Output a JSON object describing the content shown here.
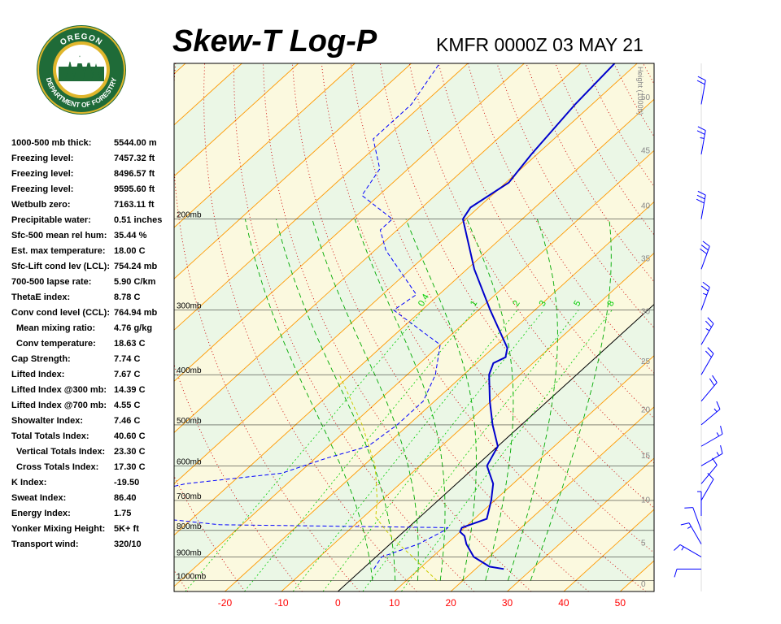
{
  "header": {
    "title": "Skew-T Log-P",
    "station_time": "KMFR 0000Z 03 MAY 21"
  },
  "logo": {
    "top_text": "OREGON",
    "bottom_text": "DEPARTMENT OF FORESTRY"
  },
  "indices": [
    {
      "label": "1000-500 mb thick:",
      "value": "5544.00 m",
      "indent": false
    },
    {
      "label": "Freezing level:",
      "value": "7457.32 ft",
      "indent": false
    },
    {
      "label": "Freezing level:",
      "value": "8496.57 ft",
      "indent": false
    },
    {
      "label": "Freezing level:",
      "value": "9595.60 ft",
      "indent": false
    },
    {
      "label": "Wetbulb zero:",
      "value": "7163.11 ft",
      "indent": false
    },
    {
      "label": "Precipitable water:",
      "value": "0.51 inches",
      "indent": false
    },
    {
      "label": "Sfc-500 mean rel hum:",
      "value": "35.44 %",
      "indent": false
    },
    {
      "label": "Est. max temperature:",
      "value": "18.00 C",
      "indent": false
    },
    {
      "label": "Sfc-Lift cond lev (LCL):",
      "value": "754.24 mb",
      "indent": false
    },
    {
      "label": "700-500 lapse rate:",
      "value": "5.90 C/km",
      "indent": false
    },
    {
      "label": "ThetaE index:",
      "value": "8.78 C",
      "indent": false
    },
    {
      "label": "Conv cond level (CCL):",
      "value": "764.94 mb",
      "indent": false
    },
    {
      "label": "Mean mixing ratio:",
      "value": "4.76 g/kg",
      "indent": true
    },
    {
      "label": "Conv temperature:",
      "value": "18.63 C",
      "indent": true
    },
    {
      "label": "Cap Strength:",
      "value": "7.74 C",
      "indent": false
    },
    {
      "label": "Lifted Index:",
      "value": "7.67 C",
      "indent": false
    },
    {
      "label": "Lifted Index @300 mb:",
      "value": "14.39 C",
      "indent": false
    },
    {
      "label": "Lifted Index @700 mb:",
      "value": "4.55 C",
      "indent": false
    },
    {
      "label": "Showalter Index:",
      "value": "7.46 C",
      "indent": false
    },
    {
      "label": "Total Totals Index:",
      "value": "40.60 C",
      "indent": false
    },
    {
      "label": "Vertical Totals Index:",
      "value": "23.30 C",
      "indent": true
    },
    {
      "label": "Cross Totals Index:",
      "value": "17.30 C",
      "indent": true
    },
    {
      "label": "K Index:",
      "value": "-19.50",
      "indent": false
    },
    {
      "label": "Sweat Index:",
      "value": "86.40",
      "indent": false
    },
    {
      "label": "Energy Index:",
      "value": "1.75",
      "indent": false
    },
    {
      "label": "Yonker Mixing Height:",
      "value": "5K+ ft",
      "indent": false
    },
    {
      "label": "Transport wind:",
      "value": "320/10",
      "indent": false
    }
  ],
  "colors": {
    "temperature": "#0000cc",
    "dewpoint": "#0000ff",
    "parcel": "#cccc00",
    "isotherm": "#ff9900",
    "dry_adiabat": "#cc0000",
    "moist_adiabat": "#00aa00",
    "mixing_ratio": "#00cc00",
    "isobar": "#000000",
    "zero_isotherm": "#000000",
    "band_green": "#ebf7e6",
    "band_yellow": "#fbf9df",
    "temp_tick_label": "#ff0000",
    "height_label": "#888888",
    "wind_barb": "#0000ff"
  },
  "chart_data": {
    "type": "line",
    "xlim": [
      -29,
      56
    ],
    "ylim": [
      1050,
      100
    ],
    "y_scale": "log",
    "x_ticks": [
      -20,
      -10,
      0,
      10,
      20,
      30,
      40,
      50
    ],
    "pressure_labels": [
      {
        "p": 200,
        "label": "200mb"
      },
      {
        "p": 300,
        "label": "300mb"
      },
      {
        "p": 400,
        "label": "400mb"
      },
      {
        "p": 500,
        "label": "500mb"
      },
      {
        "p": 600,
        "label": "600mb"
      },
      {
        "p": 700,
        "label": "700mb"
      },
      {
        "p": 800,
        "label": "800mb"
      },
      {
        "p": 900,
        "label": "900mb"
      },
      {
        "p": 1000,
        "label": "1000mb"
      }
    ],
    "height_axis": {
      "title": "Height (1000ft)",
      "labels": [
        {
          "p": 1013,
          "label": "0"
        },
        {
          "p": 843,
          "label": "5"
        },
        {
          "p": 697,
          "label": "10"
        },
        {
          "p": 572,
          "label": "15"
        },
        {
          "p": 466,
          "label": "20"
        },
        {
          "p": 376,
          "label": "25"
        },
        {
          "p": 301,
          "label": "30"
        },
        {
          "p": 238,
          "label": "35"
        },
        {
          "p": 188,
          "label": "40"
        },
        {
          "p": 147,
          "label": "45"
        },
        {
          "p": 116,
          "label": "50"
        }
      ]
    },
    "mixing_ratio_labels": [
      "0.4",
      "1",
      "2",
      "3",
      "5",
      "8"
    ],
    "series": [
      {
        "role": "temperature",
        "points": [
          {
            "p": 950,
            "t": 25.0
          },
          {
            "p": 940,
            "t": 22.0
          },
          {
            "p": 900,
            "t": 17.3
          },
          {
            "p": 850,
            "t": 13.5
          },
          {
            "p": 820,
            "t": 11.6
          },
          {
            "p": 805,
            "t": 10.0
          },
          {
            "p": 790,
            "t": 9.5
          },
          {
            "p": 760,
            "t": 12.2
          },
          {
            "p": 700,
            "t": 9.4
          },
          {
            "p": 650,
            "t": 6.5
          },
          {
            "p": 600,
            "t": 1.9
          },
          {
            "p": 550,
            "t": 0.0
          },
          {
            "p": 500,
            "t": -5.1
          },
          {
            "p": 450,
            "t": -10.2
          },
          {
            "p": 400,
            "t": -15.5
          },
          {
            "p": 380,
            "t": -17.0
          },
          {
            "p": 370,
            "t": -16.0
          },
          {
            "p": 355,
            "t": -17.5
          },
          {
            "p": 300,
            "t": -27.9
          },
          {
            "p": 250,
            "t": -38.7
          },
          {
            "p": 200,
            "t": -50.5
          },
          {
            "p": 190,
            "t": -51.4
          },
          {
            "p": 170,
            "t": -49.5
          },
          {
            "p": 150,
            "t": -51.0
          },
          {
            "p": 120,
            "t": -53.0
          },
          {
            "p": 100,
            "t": -54.0
          }
        ]
      },
      {
        "role": "dewpoint",
        "points": [
          {
            "p": 950,
            "t": 2.0
          },
          {
            "p": 900,
            "t": 1.0
          },
          {
            "p": 850,
            "t": 5.0
          },
          {
            "p": 800,
            "t": 7.0
          },
          {
            "p": 790,
            "t": 7.0
          },
          {
            "p": 780,
            "t": -34.0
          },
          {
            "p": 760,
            "t": -45.0
          },
          {
            "p": 720,
            "t": -56.0
          },
          {
            "p": 700,
            "t": -58.0
          },
          {
            "p": 650,
            "t": -48.0
          },
          {
            "p": 620,
            "t": -33.0
          },
          {
            "p": 580,
            "t": -28.0
          },
          {
            "p": 550,
            "t": -23.0
          },
          {
            "p": 500,
            "t": -22.0
          },
          {
            "p": 450,
            "t": -22.0
          },
          {
            "p": 400,
            "t": -25.0
          },
          {
            "p": 350,
            "t": -30.0
          },
          {
            "p": 300,
            "t": -45.0
          },
          {
            "p": 280,
            "t": -44.0
          },
          {
            "p": 230,
            "t": -58.0
          },
          {
            "p": 210,
            "t": -63.0
          },
          {
            "p": 200,
            "t": -63.0
          },
          {
            "p": 180,
            "t": -73.0
          },
          {
            "p": 160,
            "t": -75.0
          },
          {
            "p": 140,
            "t": -82.0
          },
          {
            "p": 120,
            "t": -82.0
          },
          {
            "p": 100,
            "t": -85.0
          }
        ]
      },
      {
        "role": "parcel",
        "points": [
          {
            "p": 1000,
            "t": 15.4
          },
          {
            "p": 950,
            "t": 11.0
          },
          {
            "p": 900,
            "t": 6.5
          },
          {
            "p": 850,
            "t": 1.5
          },
          {
            "p": 800,
            "t": -3.4
          },
          {
            "p": 754,
            "t": -7.8
          },
          {
            "p": 700,
            "t": -10.8
          },
          {
            "p": 600,
            "t": -17.9
          },
          {
            "p": 500,
            "t": -28.2
          },
          {
            "p": 400,
            "t": -42.0
          }
        ]
      }
    ],
    "wind_barbs": [
      {
        "p": 950,
        "direction": 270,
        "speed_kt": 10
      },
      {
        "p": 900,
        "direction": 300,
        "speed_kt": 15
      },
      {
        "p": 850,
        "direction": 330,
        "speed_kt": 15
      },
      {
        "p": 800,
        "direction": 340,
        "speed_kt": 10
      },
      {
        "p": 750,
        "direction": 0,
        "speed_kt": 5
      },
      {
        "p": 700,
        "direction": 30,
        "speed_kt": 10
      },
      {
        "p": 650,
        "direction": 40,
        "speed_kt": 10
      },
      {
        "p": 600,
        "direction": 60,
        "speed_kt": 15
      },
      {
        "p": 550,
        "direction": 60,
        "speed_kt": 15
      },
      {
        "p": 500,
        "direction": 50,
        "speed_kt": 15
      },
      {
        "p": 450,
        "direction": 40,
        "speed_kt": 20
      },
      {
        "p": 400,
        "direction": 30,
        "speed_kt": 20
      },
      {
        "p": 350,
        "direction": 30,
        "speed_kt": 25
      },
      {
        "p": 300,
        "direction": 20,
        "speed_kt": 25
      },
      {
        "p": 250,
        "direction": 20,
        "speed_kt": 30
      },
      {
        "p": 200,
        "direction": 10,
        "speed_kt": 30
      },
      {
        "p": 150,
        "direction": 10,
        "speed_kt": 25
      },
      {
        "p": 120,
        "direction": 10,
        "speed_kt": 20
      }
    ]
  }
}
